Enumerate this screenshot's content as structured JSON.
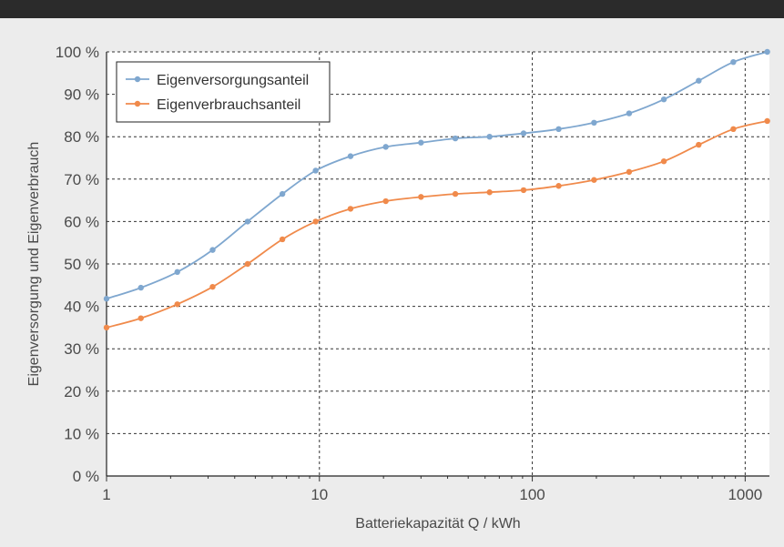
{
  "chart_data": {
    "type": "line",
    "title": "",
    "xlabel": "Batteriekapazität Q / kWh",
    "ylabel": "Eigenversorgung und Eigenverbrauch",
    "x_scale": "log",
    "xlim": [
      1,
      1300
    ],
    "ylim": [
      0,
      100
    ],
    "x_ticks": [
      1,
      10,
      100,
      1000
    ],
    "x_tick_labels": [
      "1",
      "10",
      "100",
      "1000"
    ],
    "y_ticks": [
      0,
      10,
      20,
      30,
      40,
      50,
      60,
      70,
      80,
      90,
      100
    ],
    "y_tick_labels": [
      "0 %",
      "10 %",
      "20 %",
      "30 %",
      "40 %",
      "50 %",
      "60 %",
      "70 %",
      "80 %",
      "90 %",
      "100 %"
    ],
    "grid": true,
    "legend_position": "top-left",
    "series": [
      {
        "name": "Eigenversorgungsanteil",
        "color": "#7fa7cf",
        "x": [
          1,
          1.45,
          2.15,
          3.15,
          4.6,
          6.7,
          9.6,
          14,
          20.5,
          30,
          43.5,
          63,
          91,
          133,
          195,
          285,
          415,
          605,
          880,
          1270
        ],
        "y": [
          41.8,
          44.4,
          48.1,
          53.3,
          60.0,
          66.5,
          72.0,
          75.4,
          77.6,
          78.6,
          79.6,
          80.0,
          80.8,
          81.8,
          83.3,
          85.5,
          88.8,
          93.2,
          97.6,
          100.0
        ]
      },
      {
        "name": "Eigenverbrauchsanteil",
        "color": "#f08a4b",
        "x": [
          1,
          1.45,
          2.15,
          3.15,
          4.6,
          6.7,
          9.6,
          14,
          20.5,
          30,
          43.5,
          63,
          91,
          133,
          195,
          285,
          415,
          605,
          880,
          1270
        ],
        "y": [
          35.0,
          37.2,
          40.5,
          44.6,
          50.0,
          55.8,
          60.0,
          63.0,
          64.8,
          65.8,
          66.5,
          66.9,
          67.4,
          68.4,
          69.8,
          71.7,
          74.2,
          78.1,
          81.8,
          83.7
        ]
      }
    ]
  }
}
